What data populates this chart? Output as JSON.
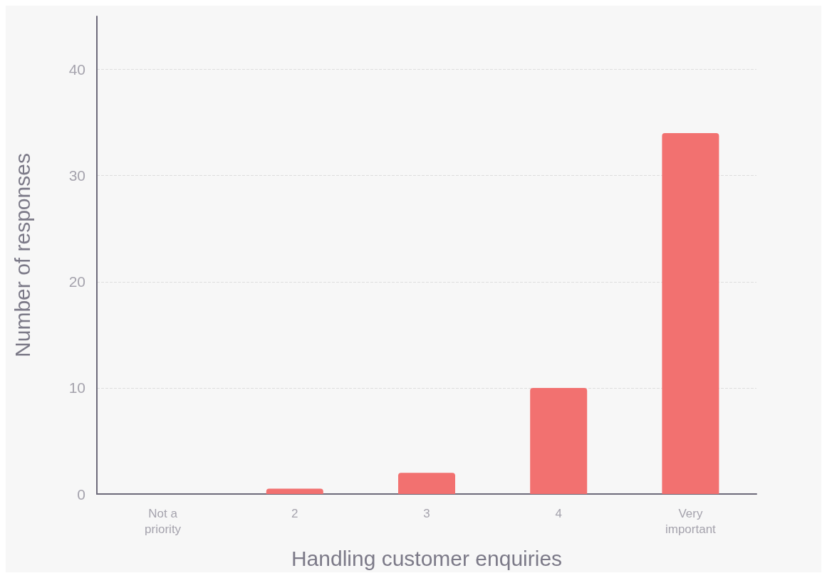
{
  "chart_data": {
    "type": "bar",
    "xlabel": "Handling customer enquiries",
    "ylabel": "Number of responses",
    "categories": [
      "Not a\npriority",
      "2",
      "3",
      "4",
      "Very\nimportant"
    ],
    "values": [
      0,
      0.5,
      2,
      10,
      34
    ],
    "color": "#f27170",
    "ylim": [
      0,
      45
    ],
    "yticks": [
      0,
      10,
      20,
      30,
      40
    ],
    "grid": "y"
  }
}
